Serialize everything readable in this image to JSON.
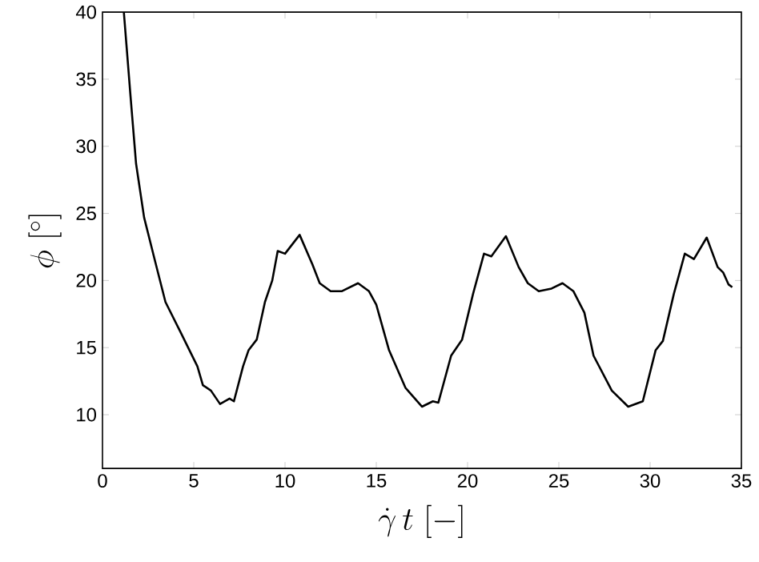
{
  "chart_data": {
    "type": "line",
    "xlabel": "\\dot{\\gamma}\\, t\\ [-]",
    "ylabel": "\\phi\\ [^{\\circ}]",
    "xlim": [
      0,
      35
    ],
    "ylim": [
      6,
      40
    ],
    "xticks": [
      0,
      5,
      10,
      15,
      20,
      25,
      30,
      35
    ],
    "yticks": [
      10,
      15,
      20,
      25,
      30,
      35,
      40
    ],
    "grid": false,
    "marker": "none",
    "line_style": "solid",
    "series": [
      {
        "color": "#000000",
        "x": [
          1.17,
          1.55,
          1.84,
          2.28,
          2.87,
          3.45,
          4.33,
          5.2,
          5.5,
          5.94,
          6.44,
          6.96,
          7.2,
          7.7,
          8.0,
          8.45,
          8.9,
          9.3,
          9.6,
          10.0,
          10.8,
          11.5,
          11.9,
          12.5,
          13.1,
          14.0,
          14.6,
          15.0,
          15.7,
          16.6,
          17.5,
          18.1,
          18.4,
          19.1,
          19.7,
          20.3,
          20.9,
          21.3,
          22.1,
          22.8,
          23.3,
          23.9,
          24.6,
          25.2,
          25.8,
          26.4,
          26.9,
          27.9,
          28.8,
          29.6,
          30.3,
          30.7,
          31.3,
          31.9,
          32.4,
          33.1,
          33.7,
          34.0,
          34.3,
          34.5
        ],
        "values": [
          40,
          33.5,
          28.7,
          24.7,
          21.5,
          18.4,
          16.0,
          13.6,
          12.2,
          11.8,
          10.8,
          11.2,
          11.0,
          13.6,
          14.8,
          15.6,
          18.4,
          20.0,
          22.2,
          22.0,
          23.4,
          21.2,
          19.8,
          19.2,
          19.2,
          19.8,
          19.2,
          18.2,
          14.8,
          12.0,
          10.6,
          11.0,
          10.9,
          14.4,
          15.6,
          19.0,
          22.0,
          21.8,
          23.3,
          21.0,
          19.8,
          19.2,
          19.4,
          19.8,
          19.2,
          17.6,
          14.4,
          11.8,
          10.6,
          11.0,
          14.8,
          15.5,
          19.0,
          22.0,
          21.6,
          23.2,
          21.0,
          20.6,
          19.7,
          19.5
        ]
      }
    ]
  }
}
